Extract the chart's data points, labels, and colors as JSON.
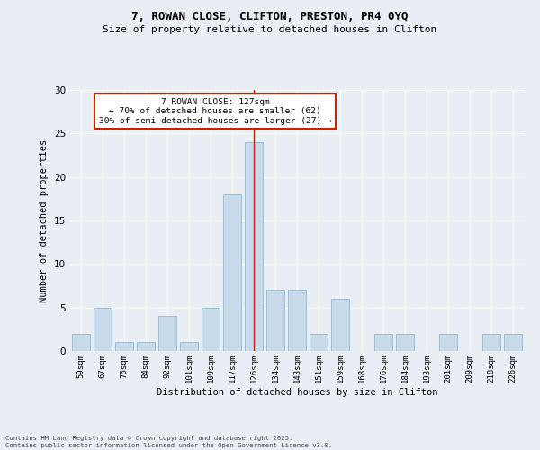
{
  "title1": "7, ROWAN CLOSE, CLIFTON, PRESTON, PR4 0YQ",
  "title2": "Size of property relative to detached houses in Clifton",
  "xlabel": "Distribution of detached houses by size in Clifton",
  "ylabel": "Number of detached properties",
  "categories": [
    "59sqm",
    "67sqm",
    "76sqm",
    "84sqm",
    "92sqm",
    "101sqm",
    "109sqm",
    "117sqm",
    "126sqm",
    "134sqm",
    "143sqm",
    "151sqm",
    "159sqm",
    "168sqm",
    "176sqm",
    "184sqm",
    "193sqm",
    "201sqm",
    "209sqm",
    "218sqm",
    "226sqm"
  ],
  "values": [
    2,
    5,
    1,
    1,
    4,
    1,
    5,
    18,
    24,
    7,
    7,
    2,
    6,
    0,
    2,
    2,
    0,
    2,
    0,
    2,
    2
  ],
  "bar_color": "#c9daea",
  "bar_edge_color": "#a0bdd0",
  "highlight_line_index": 8,
  "annotation_line1": "7 ROWAN CLOSE: 127sqm",
  "annotation_line2": "← 70% of detached houses are smaller (62)",
  "annotation_line3": "30% of semi-detached houses are larger (27) →",
  "annotation_box_color": "#ffffff",
  "annotation_box_edge_color": "#cc2200",
  "ylim": [
    0,
    30
  ],
  "yticks": [
    0,
    5,
    10,
    15,
    20,
    25,
    30
  ],
  "background_color": "#e8eef4",
  "grid_color": "#ffffff",
  "footer_line1": "Contains HM Land Registry data © Crown copyright and database right 2025.",
  "footer_line2": "Contains public sector information licensed under the Open Government Licence v3.0."
}
